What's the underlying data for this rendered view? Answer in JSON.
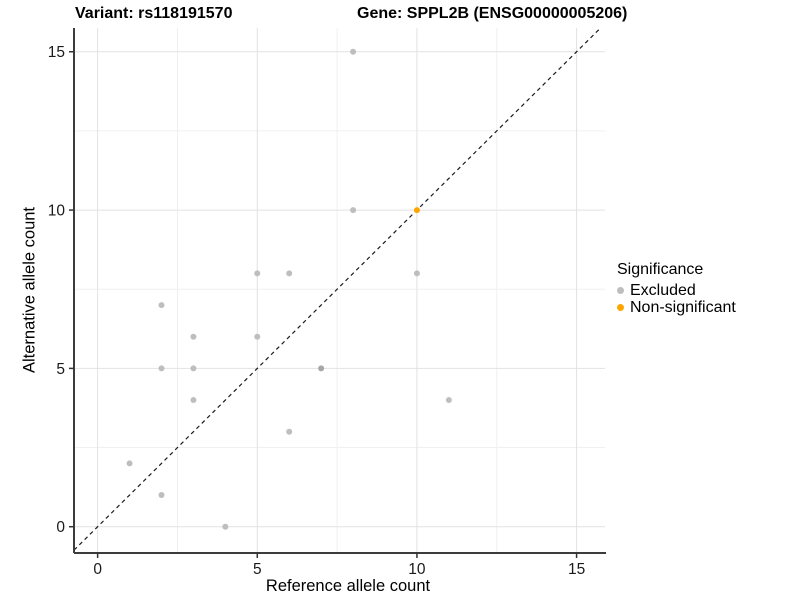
{
  "chart_data": {
    "type": "scatter",
    "title": "Variant: rs118191570        Gene: SPPL2B (ENSG00000005206)",
    "title_left": "Variant: rs118191570",
    "title_right": "Gene: SPPL2B (ENSG00000005206)",
    "xlabel": "Reference allele count",
    "ylabel": "Alternative allele count",
    "xlim": [
      -0.74,
      15.89
    ],
    "ylim": [
      -0.83,
      15.75
    ],
    "xticks": [
      0,
      5,
      10,
      15
    ],
    "yticks": [
      0,
      5,
      10,
      15
    ],
    "minor_xgrid": [
      2.5,
      7.5,
      12.5
    ],
    "minor_ygrid": [
      2.5,
      7.5,
      12.5
    ],
    "grid": true,
    "legend": {
      "title": "Significance",
      "position": "right",
      "entries": [
        {
          "label": "Excluded",
          "color": "#BEBEBE"
        },
        {
          "label": "Non-significant",
          "color": "#FFA500"
        }
      ]
    },
    "identity_line": {
      "style": "dashed",
      "slope": 1,
      "intercept": 0,
      "color": "#1A1A1A"
    },
    "series": [
      {
        "name": "Excluded",
        "color": "#BEBEBE",
        "points": [
          {
            "x": 8,
            "y": 15
          },
          {
            "x": 8,
            "y": 10
          },
          {
            "x": 10,
            "y": 8
          },
          {
            "x": 6,
            "y": 8
          },
          {
            "x": 5,
            "y": 8
          },
          {
            "x": 2,
            "y": 7
          },
          {
            "x": 3,
            "y": 6
          },
          {
            "x": 5,
            "y": 6
          },
          {
            "x": 2,
            "y": 5
          },
          {
            "x": 3,
            "y": 5
          },
          {
            "x": 7,
            "y": 5,
            "overplotted": true
          },
          {
            "x": 3,
            "y": 4
          },
          {
            "x": 11,
            "y": 4
          },
          {
            "x": 6,
            "y": 3
          },
          {
            "x": 1,
            "y": 2
          },
          {
            "x": 2,
            "y": 1
          },
          {
            "x": 4,
            "y": 0
          }
        ]
      },
      {
        "name": "Non-significant",
        "color": "#FFA500",
        "points": [
          {
            "x": 10,
            "y": 10
          }
        ]
      }
    ],
    "overplot_color": "#A6A6A6",
    "point_radius": 3,
    "colors": {
      "grid_major": "#E2E2E2",
      "grid_minor": "#F0F0F0",
      "axis_line": "#3C3C3C",
      "tick_mark": "#333333",
      "tick_label": "#1A1A1A"
    }
  }
}
